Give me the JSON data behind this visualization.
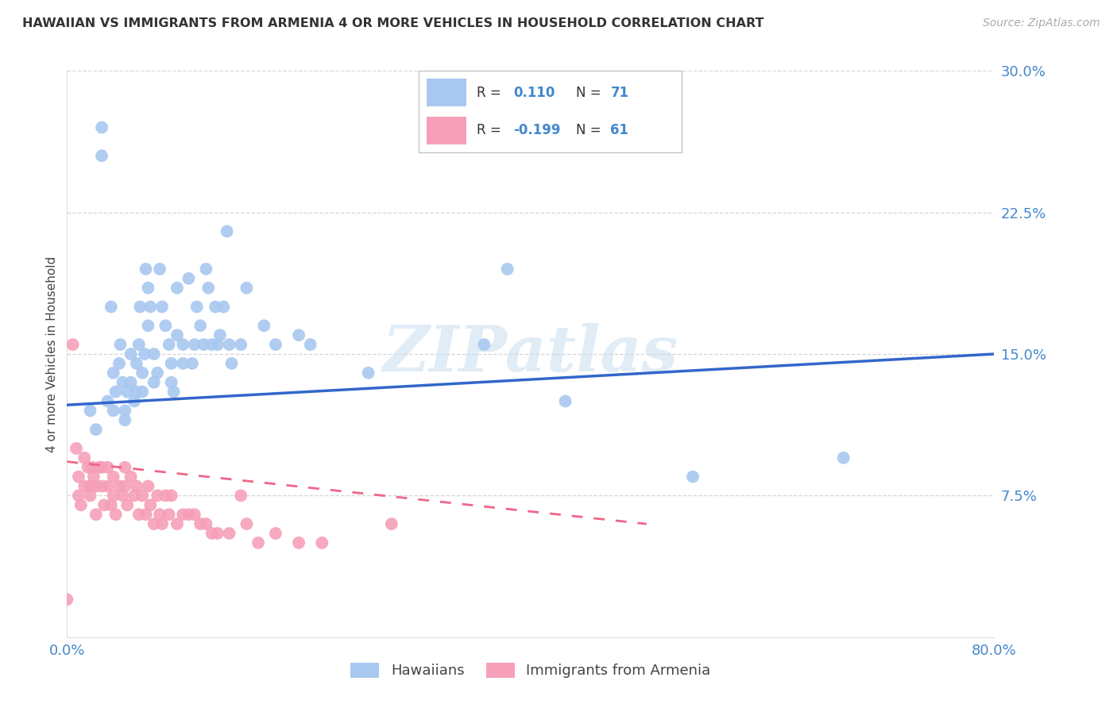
{
  "title": "HAWAIIAN VS IMMIGRANTS FROM ARMENIA 4 OR MORE VEHICLES IN HOUSEHOLD CORRELATION CHART",
  "source": "Source: ZipAtlas.com",
  "ylabel": "4 or more Vehicles in Household",
  "xlim": [
    0.0,
    0.8
  ],
  "ylim": [
    0.0,
    0.3
  ],
  "xticks": [
    0.0,
    0.1,
    0.2,
    0.3,
    0.4,
    0.5,
    0.6,
    0.7,
    0.8
  ],
  "yticks": [
    0.0,
    0.075,
    0.15,
    0.225,
    0.3
  ],
  "yticklabels": [
    "",
    "7.5%",
    "15.0%",
    "22.5%",
    "30.0%"
  ],
  "grid_color": "#cccccc",
  "background_color": "#ffffff",
  "hawaiians_color": "#a8c8f0",
  "armenians_color": "#f5a0b8",
  "hawaiians_line_color": "#3366cc",
  "armenians_line_color": "#ee6688",
  "watermark": "ZIPatlas",
  "hawaiians_x": [
    0.02,
    0.025,
    0.03,
    0.03,
    0.035,
    0.038,
    0.04,
    0.04,
    0.042,
    0.045,
    0.046,
    0.048,
    0.05,
    0.05,
    0.052,
    0.055,
    0.055,
    0.058,
    0.06,
    0.06,
    0.062,
    0.063,
    0.065,
    0.065,
    0.067,
    0.068,
    0.07,
    0.07,
    0.072,
    0.075,
    0.075,
    0.078,
    0.08,
    0.082,
    0.085,
    0.088,
    0.09,
    0.09,
    0.092,
    0.095,
    0.095,
    0.1,
    0.1,
    0.105,
    0.108,
    0.11,
    0.112,
    0.115,
    0.118,
    0.12,
    0.122,
    0.125,
    0.128,
    0.13,
    0.132,
    0.135,
    0.138,
    0.14,
    0.142,
    0.15,
    0.155,
    0.17,
    0.18,
    0.2,
    0.21,
    0.26,
    0.36,
    0.38,
    0.43,
    0.54,
    0.67
  ],
  "hawaiians_y": [
    0.12,
    0.11,
    0.27,
    0.255,
    0.125,
    0.175,
    0.14,
    0.12,
    0.13,
    0.145,
    0.155,
    0.135,
    0.12,
    0.115,
    0.13,
    0.15,
    0.135,
    0.125,
    0.145,
    0.13,
    0.155,
    0.175,
    0.14,
    0.13,
    0.15,
    0.195,
    0.185,
    0.165,
    0.175,
    0.15,
    0.135,
    0.14,
    0.195,
    0.175,
    0.165,
    0.155,
    0.145,
    0.135,
    0.13,
    0.16,
    0.185,
    0.155,
    0.145,
    0.19,
    0.145,
    0.155,
    0.175,
    0.165,
    0.155,
    0.195,
    0.185,
    0.155,
    0.175,
    0.155,
    0.16,
    0.175,
    0.215,
    0.155,
    0.145,
    0.155,
    0.185,
    0.165,
    0.155,
    0.16,
    0.155,
    0.14,
    0.155,
    0.195,
    0.125,
    0.085,
    0.095
  ],
  "armenians_x": [
    0.0,
    0.005,
    0.008,
    0.01,
    0.01,
    0.012,
    0.015,
    0.015,
    0.018,
    0.02,
    0.02,
    0.022,
    0.023,
    0.025,
    0.025,
    0.028,
    0.03,
    0.03,
    0.032,
    0.035,
    0.035,
    0.038,
    0.04,
    0.04,
    0.042,
    0.045,
    0.048,
    0.05,
    0.05,
    0.052,
    0.055,
    0.058,
    0.06,
    0.062,
    0.065,
    0.068,
    0.07,
    0.072,
    0.075,
    0.078,
    0.08,
    0.082,
    0.085,
    0.088,
    0.09,
    0.095,
    0.1,
    0.105,
    0.11,
    0.115,
    0.12,
    0.125,
    0.13,
    0.14,
    0.15,
    0.155,
    0.165,
    0.18,
    0.2,
    0.22,
    0.28
  ],
  "armenians_y": [
    0.02,
    0.155,
    0.1,
    0.085,
    0.075,
    0.07,
    0.095,
    0.08,
    0.09,
    0.08,
    0.075,
    0.09,
    0.085,
    0.08,
    0.065,
    0.09,
    0.09,
    0.08,
    0.07,
    0.09,
    0.08,
    0.07,
    0.085,
    0.075,
    0.065,
    0.08,
    0.075,
    0.09,
    0.08,
    0.07,
    0.085,
    0.075,
    0.08,
    0.065,
    0.075,
    0.065,
    0.08,
    0.07,
    0.06,
    0.075,
    0.065,
    0.06,
    0.075,
    0.065,
    0.075,
    0.06,
    0.065,
    0.065,
    0.065,
    0.06,
    0.06,
    0.055,
    0.055,
    0.055,
    0.075,
    0.06,
    0.05,
    0.055,
    0.05,
    0.05,
    0.06
  ],
  "hawaiians_line_x": [
    0.0,
    0.8
  ],
  "hawaiians_line_y": [
    0.123,
    0.15
  ],
  "armenians_line_x": [
    0.0,
    0.5
  ],
  "armenians_line_y": [
    0.093,
    0.06
  ]
}
